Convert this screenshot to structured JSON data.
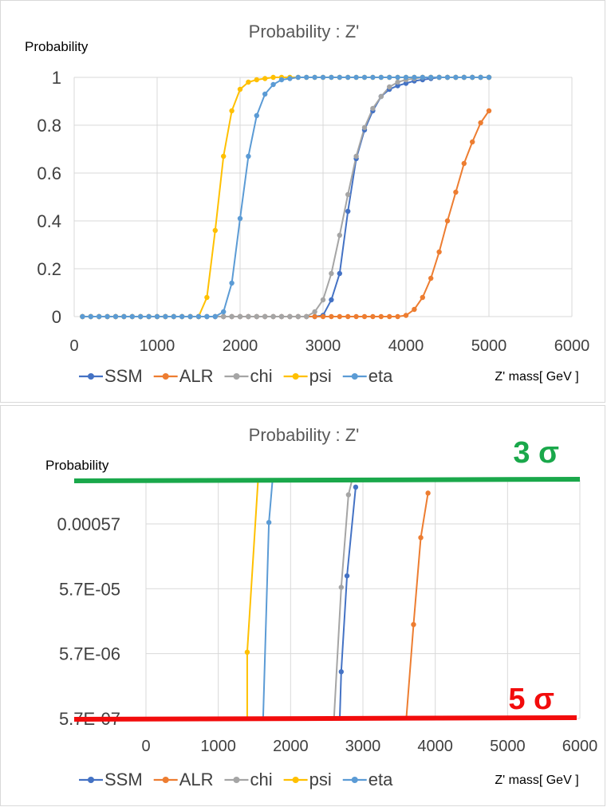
{
  "chart_data": [
    {
      "type": "line",
      "title": "Probability : Z'",
      "ylabel": "Probability",
      "xlabel": "Z' mass[ GeV ]",
      "xlim": [
        0,
        6000
      ],
      "ylim": [
        0,
        1
      ],
      "x_ticks": [
        "0",
        "1000",
        "2000",
        "3000",
        "4000",
        "5000",
        "6000"
      ],
      "y_ticks": [
        "0",
        "0.2",
        "0.4",
        "0.6",
        "0.8",
        "1"
      ],
      "grid": true,
      "legend": "bottom",
      "series": [
        {
          "name": "SSM",
          "color": "#4472c4",
          "x": [
            100,
            200,
            300,
            400,
            500,
            600,
            700,
            800,
            900,
            1000,
            1100,
            1200,
            1300,
            1400,
            1500,
            1600,
            1700,
            1800,
            1900,
            2000,
            2100,
            2200,
            2300,
            2400,
            2500,
            2600,
            2700,
            2800,
            2900,
            3000,
            3100,
            3200,
            3300,
            3400,
            3500,
            3600,
            3700,
            3800,
            3900,
            4000,
            4100,
            4200,
            4300,
            4400,
            4500,
            4600,
            4700,
            4800,
            4900,
            5000
          ],
          "y": [
            0,
            0,
            0,
            0,
            0,
            0,
            0,
            0,
            0,
            0,
            0,
            0,
            0,
            0,
            0,
            0,
            0,
            0,
            0,
            0,
            0,
            0,
            0,
            0,
            0,
            0,
            0,
            0,
            0,
            0.005,
            0.07,
            0.18,
            0.44,
            0.66,
            0.78,
            0.86,
            0.92,
            0.95,
            0.965,
            0.975,
            0.985,
            0.99,
            0.995,
            1,
            1,
            1,
            1,
            1,
            1,
            1
          ]
        },
        {
          "name": "ALR",
          "color": "#ed7d31",
          "x": [
            100,
            200,
            300,
            400,
            500,
            600,
            700,
            800,
            900,
            1000,
            1100,
            1200,
            1300,
            1400,
            1500,
            1600,
            1700,
            1800,
            1900,
            2000,
            2100,
            2200,
            2300,
            2400,
            2500,
            2600,
            2700,
            2800,
            2900,
            3000,
            3100,
            3200,
            3300,
            3400,
            3500,
            3600,
            3700,
            3800,
            3900,
            4000,
            4100,
            4200,
            4300,
            4400,
            4500,
            4600,
            4700,
            4800,
            4900,
            5000
          ],
          "y": [
            0,
            0,
            0,
            0,
            0,
            0,
            0,
            0,
            0,
            0,
            0,
            0,
            0,
            0,
            0,
            0,
            0,
            0,
            0,
            0,
            0,
            0,
            0,
            0,
            0,
            0,
            0,
            0,
            0,
            0,
            0,
            0,
            0,
            0,
            0,
            0,
            0,
            0,
            0,
            0.005,
            0.03,
            0.08,
            0.16,
            0.27,
            0.4,
            0.52,
            0.64,
            0.73,
            0.81,
            0.86
          ]
        },
        {
          "name": "chi",
          "color": "#a5a5a5",
          "x": [
            100,
            200,
            300,
            400,
            500,
            600,
            700,
            800,
            900,
            1000,
            1100,
            1200,
            1300,
            1400,
            1500,
            1600,
            1700,
            1800,
            1900,
            2000,
            2100,
            2200,
            2300,
            2400,
            2500,
            2600,
            2700,
            2800,
            2900,
            3000,
            3100,
            3200,
            3300,
            3400,
            3500,
            3600,
            3700,
            3800,
            3900,
            4000,
            4100,
            4200,
            4300,
            4400,
            4500,
            4600,
            4700,
            4800,
            4900,
            5000
          ],
          "y": [
            0,
            0,
            0,
            0,
            0,
            0,
            0,
            0,
            0,
            0,
            0,
            0,
            0,
            0,
            0,
            0,
            0,
            0,
            0,
            0,
            0,
            0,
            0,
            0,
            0,
            0,
            0,
            0,
            0.02,
            0.07,
            0.18,
            0.34,
            0.51,
            0.67,
            0.79,
            0.87,
            0.92,
            0.96,
            0.98,
            0.99,
            0.995,
            1,
            1,
            1,
            1,
            1,
            1,
            1,
            1,
            1
          ]
        },
        {
          "name": "psi",
          "color": "#ffc000",
          "x": [
            100,
            200,
            300,
            400,
            500,
            600,
            700,
            800,
            900,
            1000,
            1100,
            1200,
            1300,
            1400,
            1500,
            1600,
            1700,
            1800,
            1900,
            2000,
            2100,
            2200,
            2300,
            2400,
            2500,
            2600,
            2700,
            2800,
            2900,
            3000,
            3100,
            3200,
            3300,
            3400,
            3500,
            3600,
            3700,
            3800,
            3900,
            4000,
            4100,
            4200,
            4300,
            4400,
            4500,
            4600,
            4700,
            4800,
            4900,
            5000
          ],
          "y": [
            0,
            0,
            0,
            0,
            0,
            0,
            0,
            0,
            0,
            0,
            0,
            0,
            0,
            0,
            0,
            0.08,
            0.36,
            0.67,
            0.86,
            0.95,
            0.98,
            0.99,
            0.995,
            1,
            1,
            1,
            1,
            1,
            1,
            1,
            1,
            1,
            1,
            1,
            1,
            1,
            1,
            1,
            1,
            1,
            1,
            1,
            1,
            1,
            1,
            1,
            1,
            1,
            1,
            1
          ]
        },
        {
          "name": "eta",
          "color": "#5b9bd5",
          "x": [
            100,
            200,
            300,
            400,
            500,
            600,
            700,
            800,
            900,
            1000,
            1100,
            1200,
            1300,
            1400,
            1500,
            1600,
            1700,
            1800,
            1900,
            2000,
            2100,
            2200,
            2300,
            2400,
            2500,
            2600,
            2700,
            2800,
            2900,
            3000,
            3100,
            3200,
            3300,
            3400,
            3500,
            3600,
            3700,
            3800,
            3900,
            4000,
            4100,
            4200,
            4300,
            4400,
            4500,
            4600,
            4700,
            4800,
            4900,
            5000
          ],
          "y": [
            0,
            0,
            0,
            0,
            0,
            0,
            0,
            0,
            0,
            0,
            0,
            0,
            0,
            0,
            0,
            0,
            0,
            0.02,
            0.14,
            0.41,
            0.67,
            0.84,
            0.93,
            0.97,
            0.99,
            0.995,
            1,
            1,
            1,
            1,
            1,
            1,
            1,
            1,
            1,
            1,
            1,
            1,
            1,
            1,
            1,
            1,
            1,
            1,
            1,
            1,
            1,
            1,
            1,
            1
          ]
        }
      ]
    },
    {
      "type": "line",
      "title": "Probability : Z'",
      "ylabel": "Probability",
      "xlabel": "Z' mass[ GeV ]",
      "xlim": [
        0,
        6000
      ],
      "ylim": [
        5.7e-07,
        0.0027
      ],
      "yscale": "log",
      "x_ticks": [
        "0",
        "1000",
        "2000",
        "3000",
        "4000",
        "5000",
        "6000"
      ],
      "y_ticks": [
        "5.7E-07",
        "5.7E-06",
        "5.7E-05",
        "0.00057"
      ],
      "y_tick_values": [
        5.7e-07,
        5.7e-06,
        5.7e-05,
        0.00057
      ],
      "grid": true,
      "legend": "bottom",
      "series": [
        {
          "name": "SSM",
          "color": "#4472c4",
          "x": [
            2680,
            2700,
            2780,
            2900
          ],
          "y": [
            5.7e-07,
            3e-06,
            9e-05,
            0.0021
          ],
          "markers": [
            false,
            true,
            true,
            true
          ]
        },
        {
          "name": "ALR",
          "color": "#ed7d31",
          "x": [
            3600,
            3700,
            3800,
            3900
          ],
          "y": [
            5.7e-07,
            1.6e-05,
            0.00035,
            0.0017
          ],
          "markers": [
            false,
            true,
            true,
            true
          ]
        },
        {
          "name": "chi",
          "color": "#a5a5a5",
          "x": [
            2600,
            2700,
            2800,
            2850
          ],
          "y": [
            5.7e-07,
            6e-05,
            0.0016,
            0.0027
          ],
          "markers": [
            false,
            true,
            true,
            false
          ]
        },
        {
          "name": "psi",
          "color": "#ffc000",
          "x": [
            1400,
            1400,
            1550
          ],
          "y": [
            5.7e-07,
            6e-06,
            0.0027
          ],
          "markers": [
            false,
            true,
            false
          ]
        },
        {
          "name": "eta",
          "color": "#5b9bd5",
          "x": [
            1620,
            1700,
            1750
          ],
          "y": [
            5.7e-07,
            0.0006,
            0.0027
          ],
          "markers": [
            false,
            true,
            false
          ]
        }
      ],
      "annotations": {
        "upper_line": {
          "label": "3 σ",
          "color": "#1aa84b",
          "y": 0.0027
        },
        "lower_line": {
          "label": "5 σ",
          "color": "#f20c0c",
          "y": 5.7e-07
        }
      }
    }
  ]
}
